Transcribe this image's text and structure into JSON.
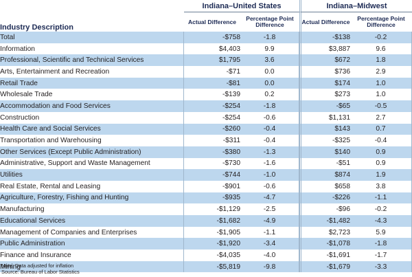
{
  "headers": {
    "industry": "Industry Description",
    "group1": "Indiana–United States",
    "group2": "Indiana–Midwest",
    "actual_diff": "Actual Difference",
    "pct_point_diff": "Percentage Point Difference"
  },
  "rows": [
    {
      "industry": "Total",
      "us_actual": "-$758",
      "us_pct": "-1.8",
      "mw_actual": "-$138",
      "mw_pct": "-0.2"
    },
    {
      "industry": "Information",
      "us_actual": "$4,403",
      "us_pct": "9.9",
      "mw_actual": "$3,887",
      "mw_pct": "9.6"
    },
    {
      "industry": "Professional, Scientific and Technical Services",
      "us_actual": "$1,795",
      "us_pct": "3.6",
      "mw_actual": "$672",
      "mw_pct": "1.8"
    },
    {
      "industry": "Arts, Entertainment and Recreation",
      "us_actual": "-$71",
      "us_pct": "0.0",
      "mw_actual": "$736",
      "mw_pct": "2.9"
    },
    {
      "industry": "Retail Trade",
      "us_actual": "-$81",
      "us_pct": "0.0",
      "mw_actual": "$174",
      "mw_pct": "1.0"
    },
    {
      "industry": "Wholesale Trade",
      "us_actual": "-$139",
      "us_pct": "0.2",
      "mw_actual": "$273",
      "mw_pct": "1.0"
    },
    {
      "industry": "Accommodation and Food Services",
      "us_actual": "-$254",
      "us_pct": "-1.8",
      "mw_actual": "-$65",
      "mw_pct": "-0.5"
    },
    {
      "industry": "Construction",
      "us_actual": "-$254",
      "us_pct": "-0.6",
      "mw_actual": "$1,131",
      "mw_pct": "2.7"
    },
    {
      "industry": "Health Care and Social Services",
      "us_actual": "-$260",
      "us_pct": "-0.4",
      "mw_actual": "$143",
      "mw_pct": "0.7"
    },
    {
      "industry": "Transportation and Warehousing",
      "us_actual": "-$311",
      "us_pct": "-0.4",
      "mw_actual": "-$325",
      "mw_pct": "-0.4"
    },
    {
      "industry": "Other Services (Except Public Administration)",
      "us_actual": "-$380",
      "us_pct": "-1.3",
      "mw_actual": "$140",
      "mw_pct": "0.9"
    },
    {
      "industry": "Administrative, Support and Waste Management",
      "us_actual": "-$730",
      "us_pct": "-1.6",
      "mw_actual": "-$51",
      "mw_pct": "0.9"
    },
    {
      "industry": "Utilities",
      "us_actual": "-$744",
      "us_pct": "-1.0",
      "mw_actual": "$874",
      "mw_pct": "1.9"
    },
    {
      "industry": "Real Estate, Rental and Leasing",
      "us_actual": "-$901",
      "us_pct": "-0.6",
      "mw_actual": "$658",
      "mw_pct": "3.8"
    },
    {
      "industry": "Agriculture, Forestry, Fishing and Hunting",
      "us_actual": "-$935",
      "us_pct": "-4.7",
      "mw_actual": "-$226",
      "mw_pct": "-1.1"
    },
    {
      "industry": "Manufacturing",
      "us_actual": "-$1,129",
      "us_pct": "-2.5",
      "mw_actual": "-$96",
      "mw_pct": "-0.2"
    },
    {
      "industry": "Educational Services",
      "us_actual": "-$1,682",
      "us_pct": "-4.9",
      "mw_actual": "-$1,482",
      "mw_pct": "-4.3"
    },
    {
      "industry": "Management of Companies and Enterprises",
      "us_actual": "-$1,905",
      "us_pct": "-1.1",
      "mw_actual": "$2,723",
      "mw_pct": "5.9"
    },
    {
      "industry": "Public Administration",
      "us_actual": "-$1,920",
      "us_pct": "-3.4",
      "mw_actual": "-$1,078",
      "mw_pct": "-1.8"
    },
    {
      "industry": "Finance and Insurance",
      "us_actual": "-$4,035",
      "us_pct": "-4.0",
      "mw_actual": "-$1,691",
      "mw_pct": "-1.7"
    },
    {
      "industry": "Mining",
      "us_actual": "-$5,819",
      "us_pct": "-9.8",
      "mw_actual": "-$1,679",
      "mw_pct": "-3.3"
    }
  ],
  "footer": {
    "note": "Note: Data adjusted for inflation",
    "source": "Source: Bureau of Labor Statistics"
  },
  "colors": {
    "band": "#bdd7ee",
    "header_text": "#1c2a54",
    "rule": "#6c7f96"
  }
}
